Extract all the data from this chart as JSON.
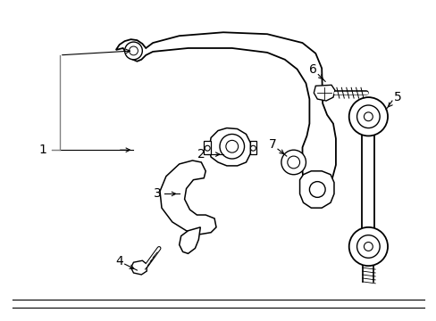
{
  "background_color": "#ffffff",
  "line_color": "#000000",
  "figsize": [
    4.89,
    3.6
  ],
  "dpi": 100,
  "font_size": 10
}
